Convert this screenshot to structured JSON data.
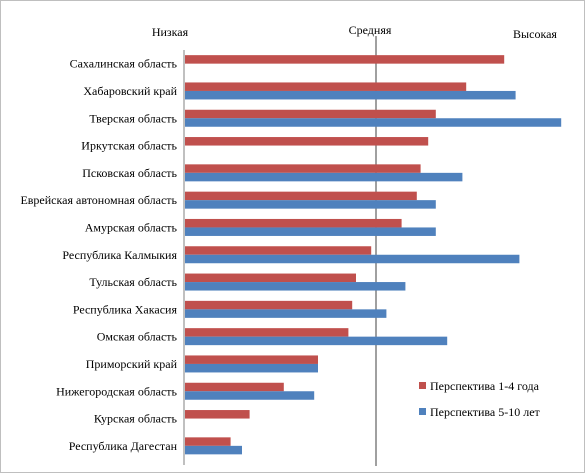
{
  "chart_data": {
    "type": "bar",
    "orientation": "horizontal",
    "title": "",
    "xlabel": "",
    "ylabel": "",
    "grid": false,
    "legend_position": "bottom-right",
    "x_scale_labels": [
      "Низкая",
      "Средняя",
      "Высокая"
    ],
    "xlim": [
      0,
      100
    ],
    "categories": [
      "Сахалинская область",
      "Хабаровский край",
      "Тверская область",
      "Иркутская область",
      "Псковская область",
      "Еврейская автономная область",
      "Амурская область",
      "Республика Калмыкия",
      "Тульская область",
      "Республика Хакасия",
      "Омская область",
      "Приморский край",
      "Нижегородская область",
      "Курская область",
      "Республика Дагестан"
    ],
    "series": [
      {
        "name": "Перспектива 1-4 года",
        "color": "#c0504d",
        "values": [
          84,
          74,
          66,
          64,
          62,
          61,
          57,
          49,
          45,
          44,
          43,
          35,
          26,
          17,
          12
        ]
      },
      {
        "name": "Перспектива 5-10 лет",
        "color": "#4f81bd",
        "values": [
          null,
          87,
          99,
          null,
          73,
          66,
          66,
          88,
          58,
          53,
          69,
          35,
          34,
          null,
          15
        ]
      }
    ]
  }
}
